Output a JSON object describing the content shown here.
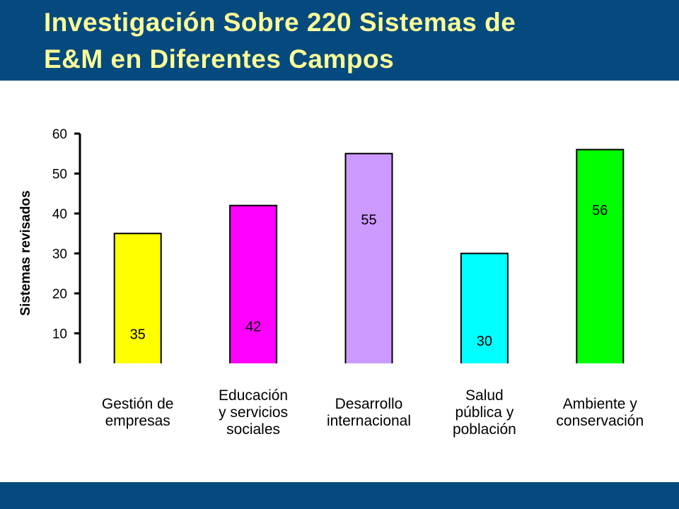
{
  "title_lines": [
    "Investigación Sobre 220 Sistemas de",
    "E&M en Diferentes Campos"
  ],
  "colors": {
    "header": "#054A7E",
    "title": "#FFFF99",
    "bars": [
      "#FFFF00",
      "#FF00FF",
      "#CC99FF",
      "#00FFFF",
      "#00FF00"
    ]
  },
  "chart_data": {
    "type": "bar",
    "categories": [
      "Gestión de empresas",
      "Educación y servicios sociales",
      "Desarrollo internacional",
      "Salud pública y población",
      "Ambiente y conservación"
    ],
    "category_lines": [
      [
        "Gestión de",
        "empresas"
      ],
      [
        "Educación",
        "y servicios",
        "sociales"
      ],
      [
        "Desarrollo",
        "internacional"
      ],
      [
        "Salud",
        "pública y",
        "población"
      ],
      [
        "Ambiente y",
        "conservación"
      ]
    ],
    "values": [
      35,
      42,
      55,
      30,
      56
    ],
    "data_labels": [
      "35",
      "42",
      "55",
      "30",
      "56"
    ],
    "ylabel": "Sistemas revisados",
    "xlabel": "",
    "ylim": [
      0,
      60
    ],
    "yticks": [
      0,
      10,
      20,
      30,
      40,
      50,
      60
    ],
    "grid": false,
    "legend": "none"
  }
}
